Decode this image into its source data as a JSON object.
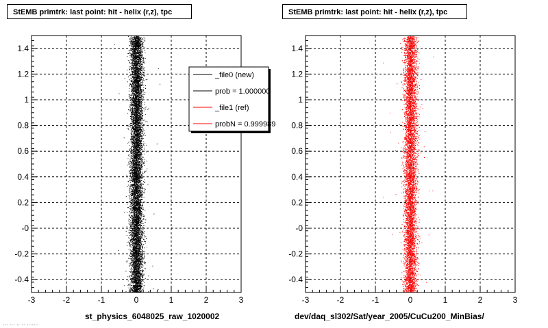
{
  "panels": [
    {
      "title": "StEMB primtrk: last point: hit - helix (r,z), tpc",
      "xlabel": "st_physics_6048025_raw_1020002"
    },
    {
      "title": "StEMB primtrk: last point: hit - helix (r,z), tpc",
      "xlabel": "dev/daq_sl302/Sat/year_2005/CuCu200_MinBias/"
    }
  ],
  "legend": {
    "entries": [
      {
        "label": "_file0 (new)",
        "color": "#000000"
      },
      {
        "label": "prob = 1.000000",
        "color": "#000000"
      },
      {
        "label": "_file1 (ref)",
        "color": "#ff0000"
      },
      {
        "label": "probN = 0.999989",
        "color": "#ff0000"
      }
    ]
  },
  "footer": "... ... .. .. .......",
  "chart_data": [
    {
      "type": "scatter",
      "series": [
        {
          "color": "#000000",
          "center_x": 0.0,
          "spread_x": 0.09,
          "points": 9000
        }
      ],
      "xlim": [
        -3,
        3
      ],
      "ylim": [
        -0.5,
        1.5
      ],
      "xticks": [
        "-3",
        "-2",
        "-1",
        "0",
        "1",
        "2",
        "3"
      ],
      "yticks": [
        "-0.4",
        "-0.2",
        "-0",
        "0.2",
        "0.4",
        "0.6",
        "0.8",
        "1",
        "1.2",
        "1.4"
      ],
      "grid": true
    },
    {
      "type": "scatter",
      "series": [
        {
          "color": "#ff0000",
          "center_x": 0.0,
          "spread_x": 0.09,
          "points": 6500
        }
      ],
      "xlim": [
        -3,
        3
      ],
      "ylim": [
        -0.5,
        1.5
      ],
      "xticks": [
        "-3",
        "-2",
        "-1",
        "0",
        "1",
        "2",
        "3"
      ],
      "yticks": [
        "-0.4",
        "-0.2",
        "-0",
        "0.2",
        "0.4",
        "0.6",
        "0.8",
        "1",
        "1.2",
        "1.4"
      ],
      "grid": true
    }
  ]
}
